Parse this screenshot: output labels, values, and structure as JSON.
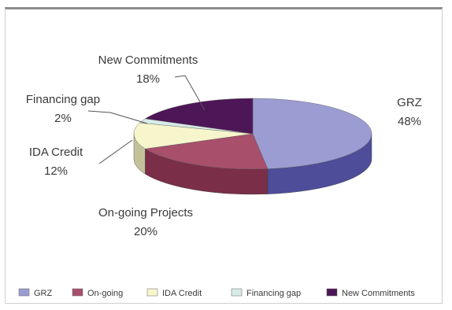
{
  "chart_data": {
    "type": "pie",
    "title": "",
    "three_d": true,
    "slices": [
      {
        "label": "GRZ",
        "value": 48,
        "value_label": "48%",
        "legend": "GRZ",
        "color": "#9b9cd1",
        "side": "#4d4d9a"
      },
      {
        "label": "On-going Projects",
        "value": 20,
        "value_label": "20%",
        "legend": "On-going",
        "color": "#a74f6b",
        "side": "#7a2e48"
      },
      {
        "label": "IDA Credit",
        "value": 12,
        "value_label": "12%",
        "legend": "IDA Credit",
        "color": "#f7f5cc",
        "side": "#c4c29a"
      },
      {
        "label": "Financing gap",
        "value": 2,
        "value_label": "2%",
        "legend": "Financing gap",
        "color": "#d7ece8",
        "side": "#a4bab6"
      },
      {
        "label": "New Commitments",
        "value": 18,
        "value_label": "18%",
        "legend": "New Commitments",
        "color": "#4d1657",
        "side": "#320b39"
      }
    ],
    "legend_position": "bottom"
  }
}
